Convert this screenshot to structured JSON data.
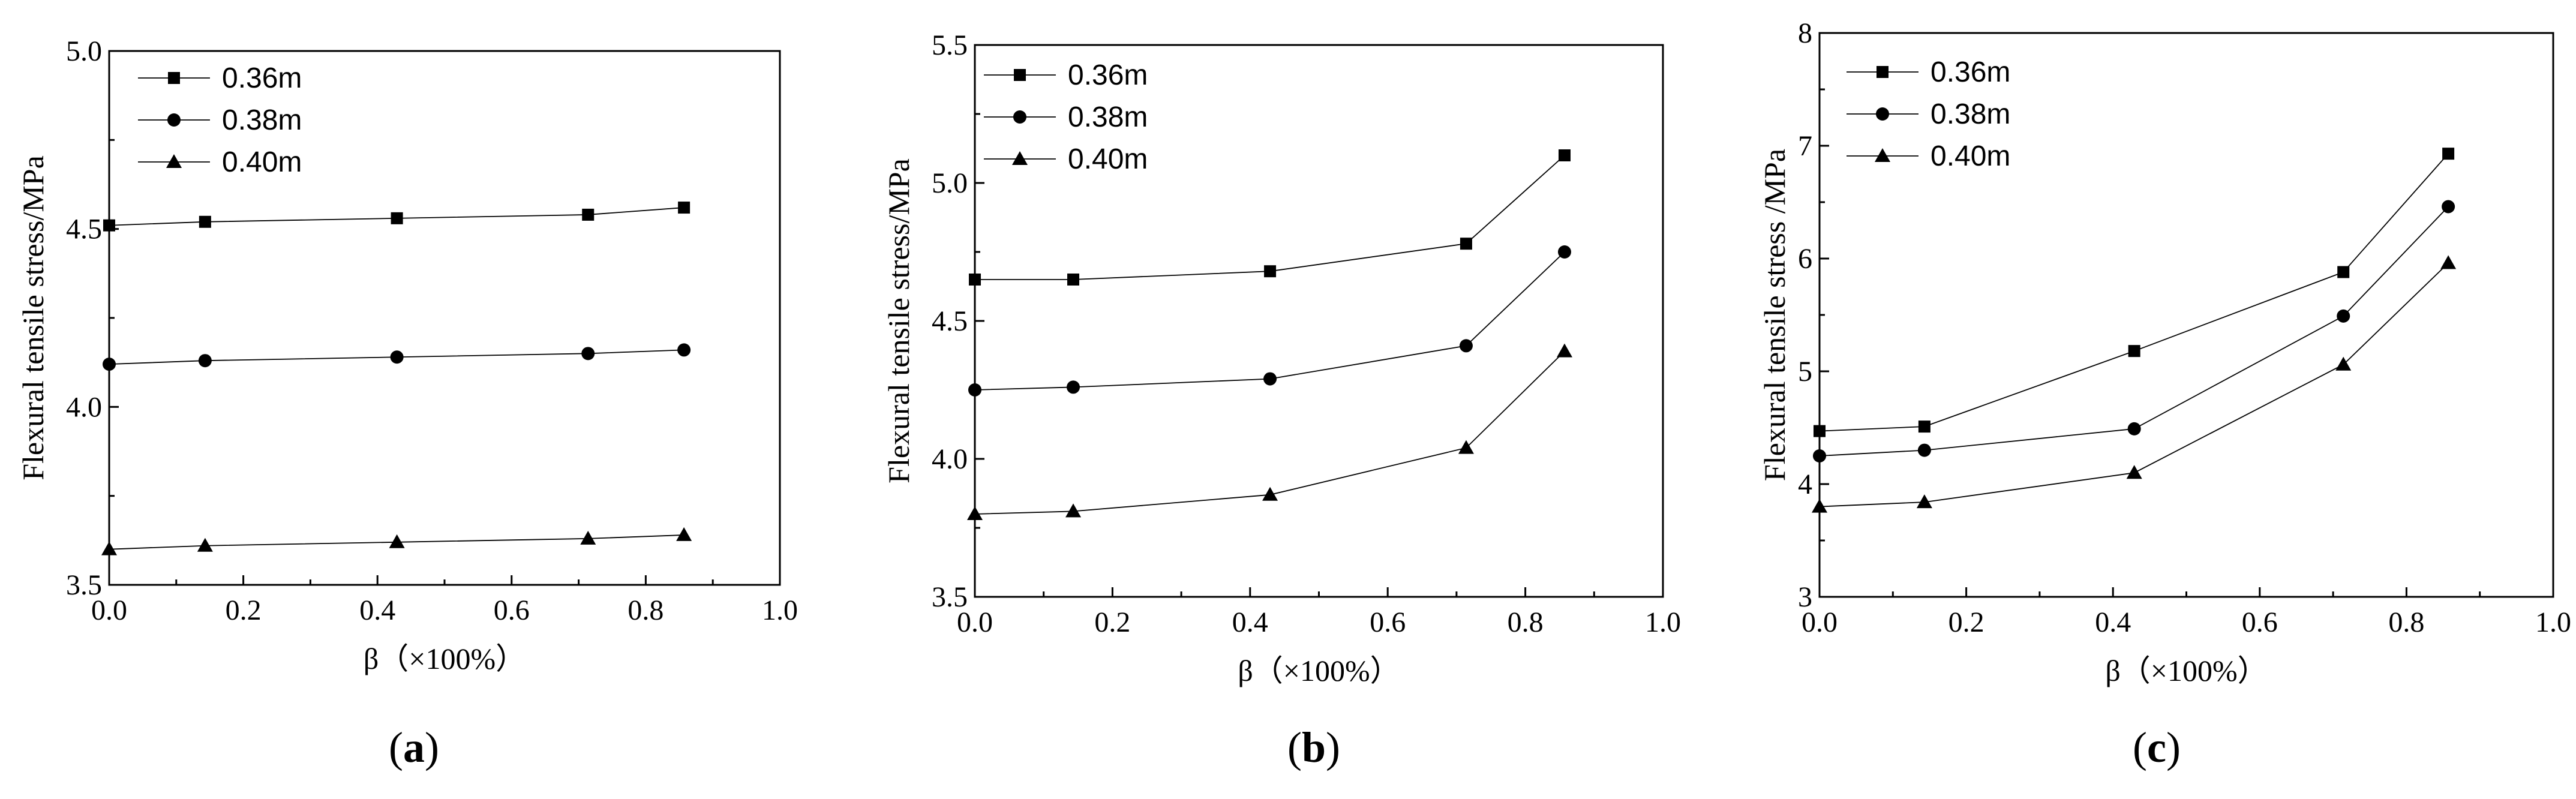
{
  "chart_data": [
    {
      "type": "line",
      "panel_label": "a",
      "xlabel": "β（×100%）",
      "ylabel": "Flexural tensile stress/MPa",
      "xlim": [
        0.0,
        1.0
      ],
      "ylim": [
        3.5,
        5.0
      ],
      "xticks": [
        "0.0",
        "0.2",
        "0.4",
        "0.6",
        "0.8",
        "1.0"
      ],
      "yticks": [
        "3.5",
        "4.0",
        "4.5",
        "5.0"
      ],
      "x": [
        0.0,
        0.143,
        0.429,
        0.714,
        0.857
      ],
      "series": [
        {
          "name": "0.36m",
          "marker": "square",
          "values": [
            4.51,
            4.52,
            4.53,
            4.54,
            4.56
          ]
        },
        {
          "name": "0.38m",
          "marker": "circle",
          "values": [
            4.12,
            4.13,
            4.14,
            4.15,
            4.16
          ]
        },
        {
          "name": "0.40m",
          "marker": "triangle",
          "values": [
            3.6,
            3.61,
            3.62,
            3.63,
            3.64
          ]
        }
      ],
      "legend": "top-left"
    },
    {
      "type": "line",
      "panel_label": "b",
      "xlabel": "β（×100%）",
      "ylabel": "Flexural tensile stress/MPa",
      "xlim": [
        0.0,
        1.0
      ],
      "ylim": [
        3.5,
        5.5
      ],
      "xticks": [
        "0.0",
        "0.2",
        "0.4",
        "0.6",
        "0.8",
        "1.0"
      ],
      "yticks": [
        "3.5",
        "4.0",
        "4.5",
        "5.0",
        "5.5"
      ],
      "x": [
        0.0,
        0.143,
        0.429,
        0.714,
        0.857
      ],
      "series": [
        {
          "name": "0.36m",
          "marker": "square",
          "values": [
            4.65,
            4.65,
            4.68,
            4.78,
            5.1
          ]
        },
        {
          "name": "0.38m",
          "marker": "circle",
          "values": [
            4.25,
            4.26,
            4.29,
            4.41,
            4.75
          ]
        },
        {
          "name": "0.40m",
          "marker": "triangle",
          "values": [
            3.8,
            3.81,
            3.87,
            4.04,
            4.39
          ]
        }
      ],
      "legend": "top-left"
    },
    {
      "type": "line",
      "panel_label": "c",
      "xlabel": "β（×100%）",
      "ylabel": "Flexural tensile stress /MPa",
      "xlim": [
        0.0,
        1.0
      ],
      "ylim": [
        3,
        8
      ],
      "xticks": [
        "0.0",
        "0.2",
        "0.4",
        "0.6",
        "0.8",
        "1.0"
      ],
      "yticks": [
        "3",
        "4",
        "5",
        "6",
        "7",
        "8"
      ],
      "x": [
        0.0,
        0.143,
        0.429,
        0.714,
        0.857
      ],
      "series": [
        {
          "name": "0.36m",
          "marker": "square",
          "values": [
            4.47,
            4.51,
            5.18,
            5.88,
            6.93
          ]
        },
        {
          "name": "0.38m",
          "marker": "circle",
          "values": [
            4.25,
            4.3,
            4.49,
            5.49,
            6.46
          ]
        },
        {
          "name": "0.40m",
          "marker": "triangle",
          "values": [
            3.8,
            3.84,
            4.1,
            5.06,
            5.96
          ]
        }
      ],
      "legend": "top-left"
    }
  ]
}
